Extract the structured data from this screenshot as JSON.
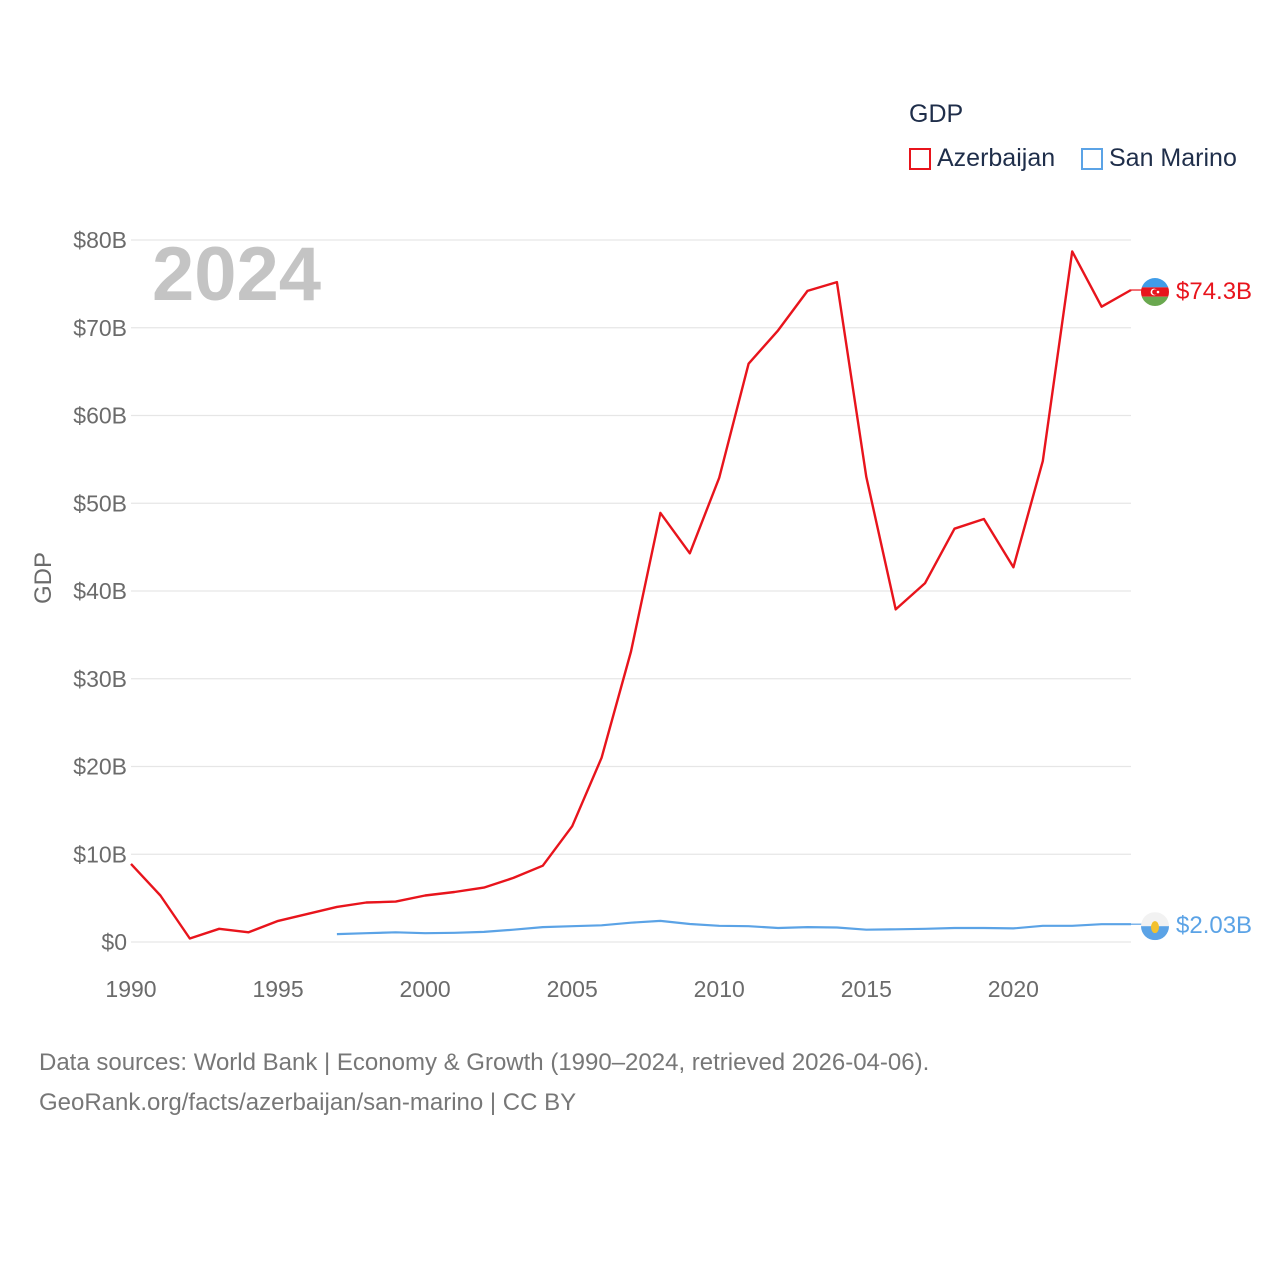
{
  "legend": {
    "title": "GDP",
    "items": [
      {
        "name": "Azerbaijan",
        "color": "#e8141c"
      },
      {
        "name": "San Marino",
        "color": "#5ba3e6"
      }
    ]
  },
  "year_label": "2024",
  "source": {
    "line1": "Data sources: World Bank | Economy & Growth (1990–2024, retrieved 2026-04-06).",
    "line2": "GeoRank.org/facts/azerbaijan/san-marino | CC BY"
  },
  "chart_data": {
    "type": "line",
    "title": "GDP",
    "xlabel": "",
    "ylabel": "GDP",
    "xlim": [
      1990,
      2024
    ],
    "ylim": [
      0,
      80
    ],
    "y_unit": "B USD",
    "x_ticks": [
      1990,
      1995,
      2000,
      2005,
      2010,
      2015,
      2020
    ],
    "y_ticks": [
      0,
      10,
      20,
      30,
      40,
      50,
      60,
      70,
      80
    ],
    "y_tick_labels": [
      "$0",
      "$10B",
      "$20B",
      "$30B",
      "$40B",
      "$50B",
      "$60B",
      "$70B",
      "$80B"
    ],
    "grid": true,
    "legend_position": "top-right",
    "series": [
      {
        "name": "Azerbaijan",
        "color": "#e8141c",
        "end_label": "$74.3B",
        "x": [
          1990,
          1991,
          1992,
          1993,
          1994,
          1995,
          1996,
          1997,
          1998,
          1999,
          2000,
          2001,
          2002,
          2003,
          2004,
          2005,
          2006,
          2007,
          2008,
          2009,
          2010,
          2011,
          2012,
          2013,
          2014,
          2015,
          2016,
          2017,
          2018,
          2019,
          2020,
          2021,
          2022,
          2023,
          2024
        ],
        "values": [
          8.9,
          5.3,
          0.4,
          1.5,
          1.1,
          2.4,
          3.2,
          4.0,
          4.5,
          4.6,
          5.3,
          5.7,
          6.2,
          7.3,
          8.7,
          13.2,
          21.0,
          33.1,
          48.9,
          44.3,
          52.9,
          65.9,
          69.7,
          74.2,
          75.2,
          53.0,
          37.9,
          40.9,
          47.1,
          48.2,
          42.7,
          54.8,
          78.7,
          72.4,
          74.3
        ]
      },
      {
        "name": "San Marino",
        "color": "#5ba3e6",
        "end_label": "$2.03B",
        "x": [
          1997,
          1998,
          1999,
          2000,
          2001,
          2002,
          2003,
          2004,
          2005,
          2006,
          2007,
          2008,
          2009,
          2010,
          2011,
          2012,
          2013,
          2014,
          2015,
          2016,
          2017,
          2018,
          2019,
          2020,
          2021,
          2022,
          2023,
          2024
        ],
        "values": [
          0.9,
          1.0,
          1.1,
          1.0,
          1.05,
          1.15,
          1.4,
          1.7,
          1.8,
          1.9,
          2.2,
          2.4,
          2.05,
          1.85,
          1.8,
          1.6,
          1.7,
          1.65,
          1.4,
          1.45,
          1.5,
          1.6,
          1.6,
          1.55,
          1.85,
          1.85,
          2.03,
          2.03
        ]
      }
    ]
  }
}
